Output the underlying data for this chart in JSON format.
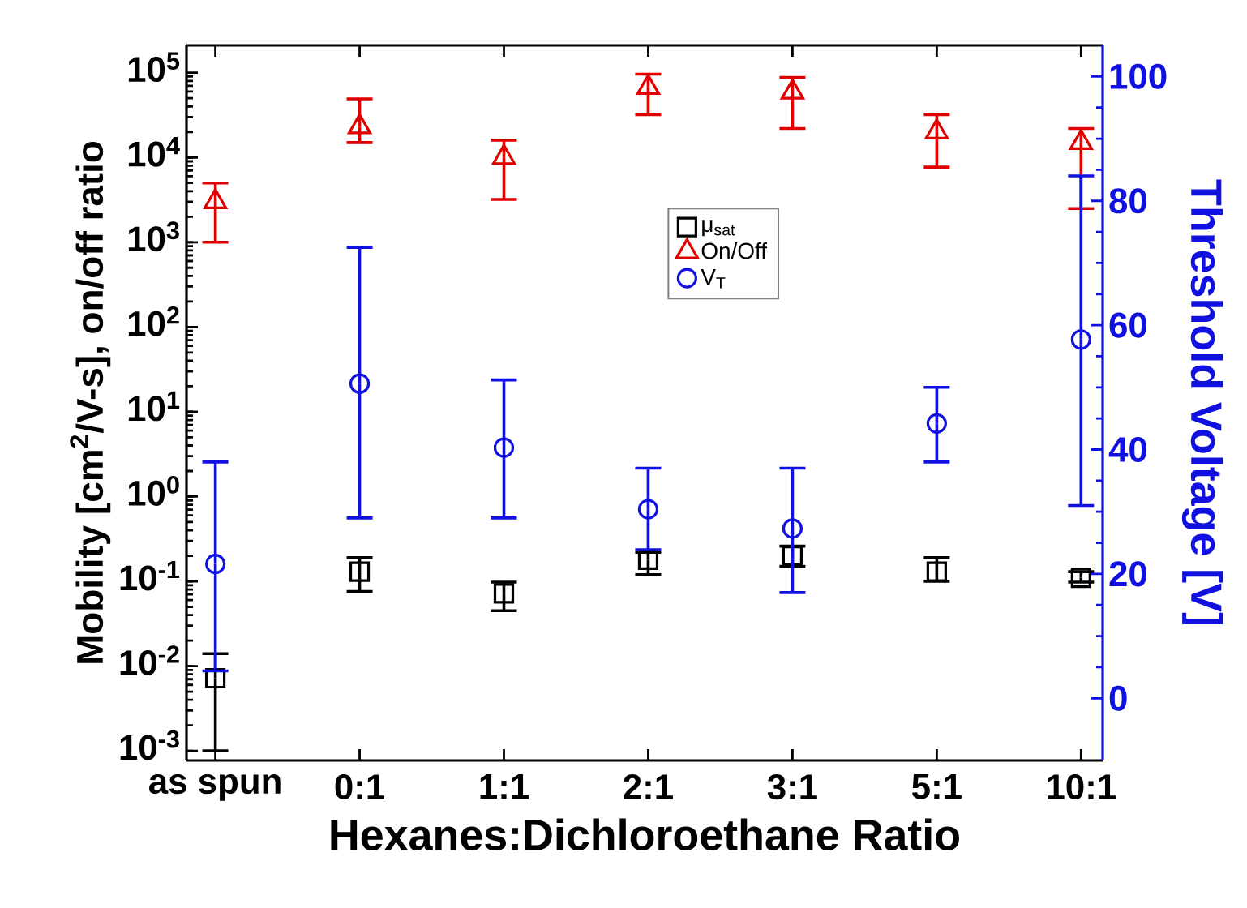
{
  "chart_data": {
    "type": "scatter",
    "categories": [
      "as spun",
      "0:1",
      "1:1",
      "2:1",
      "3:1",
      "5:1",
      "10:1"
    ],
    "xlabel": "Hexanes:Dichloroethane Ratio",
    "ylabel": "Mobility [cm$^{2}$/V-s], on/off ratio",
    "y2label": "Threshold Voltage [V]",
    "log": "y",
    "ylim": [
      0.00077,
      210000
    ],
    "yticks": [
      {
        "value": 0.001,
        "label": "10$^{-3}$"
      },
      {
        "value": 0.01,
        "label": "10$^{-2}$"
      },
      {
        "value": 0.1,
        "label": "10$^{-1}$"
      },
      {
        "value": 1,
        "label": "10$^{0}$"
      },
      {
        "value": 10,
        "label": "10$^{1}$"
      },
      {
        "value": 100,
        "label": "10$^{2}$"
      },
      {
        "value": 1000,
        "label": "10$^{3}$"
      },
      {
        "value": 10000,
        "label": "10$^{4}$"
      },
      {
        "value": 100000,
        "label": "10$^{5}$"
      }
    ],
    "y2lim": [
      -10,
      105
    ],
    "y2ticks": [
      0,
      20,
      40,
      60,
      80,
      100
    ],
    "legend": "top",
    "series": [
      {
        "name": "μ$_{sat}$",
        "color": "#000000",
        "marker": "square",
        "values": [
          0.0072,
          0.13,
          0.072,
          0.18,
          0.2,
          0.13,
          0.11
        ],
        "errors": [
          [
            0.001,
            0.014
          ],
          [
            0.076,
            0.19
          ],
          [
            0.045,
            0.098
          ],
          [
            0.12,
            0.22
          ],
          [
            0.15,
            0.26
          ],
          [
            0.1,
            0.19
          ],
          [
            0.098,
            0.13
          ]
        ]
      },
      {
        "name": "On/Off",
        "color": "#e00000",
        "marker": "triangle",
        "values": [
          3000,
          23000,
          10000,
          67000,
          59000,
          20000,
          15000
        ],
        "errors": [
          [
            1000,
            5000
          ],
          [
            15000,
            49000
          ],
          [
            3200,
            16000
          ],
          [
            32000,
            96000
          ],
          [
            22000,
            88000
          ],
          [
            7700,
            32000
          ],
          [
            2500,
            22000
          ]
        ]
      },
      {
        "name": "V$_{T}$",
        "color": "#1010e0",
        "marker": "circle",
        "axis": "y2",
        "values": [
          21.6,
          50.6,
          40.3,
          30.4,
          27.3,
          44.2,
          57.7
        ],
        "errors": [
          [
            4.4,
            38
          ],
          [
            29,
            72.5
          ],
          [
            29,
            51.2
          ],
          [
            23.9,
            37
          ],
          [
            17,
            37
          ],
          [
            38,
            50
          ],
          [
            31,
            84
          ]
        ]
      }
    ]
  }
}
